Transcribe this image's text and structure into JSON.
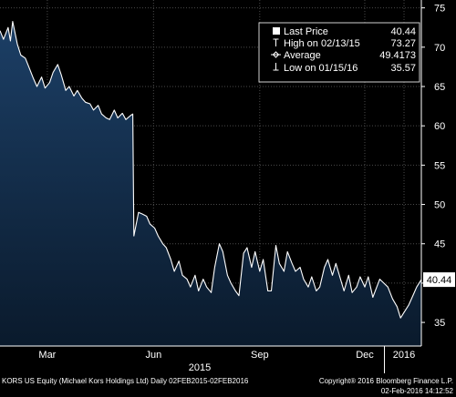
{
  "chart_data": {
    "type": "area",
    "title": "",
    "xlabel": "",
    "ylabel": "",
    "x_start": "2015-02-02",
    "x_end": "2016-02-02",
    "ylim": [
      32,
      76
    ],
    "y_ticks": [
      35,
      40,
      45,
      50,
      55,
      60,
      65,
      70,
      75
    ],
    "grid": true,
    "x_tick_labels": [
      {
        "label": "Mar",
        "date": "2015-03-15"
      },
      {
        "label": "Jun",
        "date": "2015-06-15"
      },
      {
        "label": "Sep",
        "date": "2015-09-15"
      },
      {
        "label": "Dec",
        "date": "2015-12-15"
      },
      {
        "label": "2016",
        "date": "2016-01-18"
      }
    ],
    "x_year_labels": [
      {
        "label": "2015",
        "date": "2015-07-25"
      }
    ],
    "year_divider_date": "2016-01-01",
    "last_value_label": "40.44",
    "series": [
      {
        "name": "Last Price",
        "color": "#ffffff",
        "fill_top": "#1c3f66",
        "fill_bottom": "#0a1a2c",
        "x": [
          "2015-02-02",
          "2015-02-05",
          "2015-02-09",
          "2015-02-11",
          "2015-02-13",
          "2015-02-17",
          "2015-02-20",
          "2015-02-24",
          "2015-02-27",
          "2015-03-03",
          "2015-03-06",
          "2015-03-10",
          "2015-03-13",
          "2015-03-17",
          "2015-03-20",
          "2015-03-24",
          "2015-03-27",
          "2015-03-31",
          "2015-04-03",
          "2015-04-07",
          "2015-04-10",
          "2015-04-14",
          "2015-04-17",
          "2015-04-21",
          "2015-04-24",
          "2015-04-28",
          "2015-05-01",
          "2015-05-05",
          "2015-05-08",
          "2015-05-12",
          "2015-05-15",
          "2015-05-19",
          "2015-05-22",
          "2015-05-26",
          "2015-05-28",
          "2015-05-29",
          "2015-06-02",
          "2015-06-05",
          "2015-06-09",
          "2015-06-12",
          "2015-06-16",
          "2015-06-19",
          "2015-06-23",
          "2015-06-26",
          "2015-06-30",
          "2015-07-03",
          "2015-07-07",
          "2015-07-10",
          "2015-07-14",
          "2015-07-17",
          "2015-07-21",
          "2015-07-24",
          "2015-07-28",
          "2015-07-31",
          "2015-08-04",
          "2015-08-07",
          "2015-08-11",
          "2015-08-14",
          "2015-08-18",
          "2015-08-21",
          "2015-08-25",
          "2015-08-28",
          "2015-09-01",
          "2015-09-04",
          "2015-09-08",
          "2015-09-11",
          "2015-09-15",
          "2015-09-18",
          "2015-09-22",
          "2015-09-25",
          "2015-09-29",
          "2015-10-02",
          "2015-10-06",
          "2015-10-09",
          "2015-10-13",
          "2015-10-16",
          "2015-10-20",
          "2015-10-23",
          "2015-10-27",
          "2015-10-30",
          "2015-11-03",
          "2015-11-06",
          "2015-11-10",
          "2015-11-13",
          "2015-11-17",
          "2015-11-20",
          "2015-11-24",
          "2015-11-27",
          "2015-12-01",
          "2015-12-04",
          "2015-12-08",
          "2015-12-11",
          "2015-12-15",
          "2015-12-18",
          "2015-12-22",
          "2015-12-28",
          "2016-01-04",
          "2016-01-08",
          "2016-01-12",
          "2016-01-15",
          "2016-01-19",
          "2016-01-22",
          "2016-01-26",
          "2016-01-29",
          "2016-02-02"
        ],
        "y": [
          72.1,
          71.0,
          72.5,
          70.8,
          73.27,
          70.4,
          69.0,
          68.6,
          67.5,
          66.0,
          65.0,
          66.2,
          64.8,
          65.5,
          66.8,
          67.8,
          66.5,
          64.5,
          65.0,
          63.8,
          64.5,
          63.5,
          63.0,
          62.8,
          62.0,
          62.6,
          61.5,
          61.0,
          60.8,
          62.0,
          61.0,
          61.6,
          60.8,
          61.3,
          61.5,
          46.0,
          49.0,
          48.8,
          48.5,
          47.5,
          47.0,
          46.0,
          45.0,
          44.5,
          43.0,
          41.5,
          42.8,
          41.0,
          40.5,
          39.5,
          41.0,
          39.0,
          40.5,
          39.5,
          38.8,
          42.0,
          45.0,
          44.0,
          41.0,
          40.0,
          39.0,
          38.4,
          43.8,
          44.5,
          42.0,
          44.0,
          41.5,
          43.0,
          39.0,
          39.0,
          44.8,
          42.5,
          41.5,
          44.0,
          42.5,
          41.5,
          42.0,
          40.5,
          39.5,
          40.8,
          39.0,
          39.5,
          42.0,
          43.0,
          41.0,
          42.5,
          40.5,
          39.0,
          41.0,
          38.8,
          39.5,
          40.8,
          39.5,
          40.8,
          38.2,
          40.5,
          39.5,
          38.0,
          37.0,
          35.57,
          36.5,
          37.2,
          38.5,
          39.5,
          40.44
        ]
      }
    ],
    "legend": {
      "placement": "top-right",
      "entries": [
        {
          "icon": "square-icon",
          "label": "Last Price",
          "value": "40.44"
        },
        {
          "icon": "high-marker-icon",
          "label": "High on 02/13/15",
          "value": "73.27"
        },
        {
          "icon": "average-marker-icon",
          "label": "Average",
          "value": "49.4173"
        },
        {
          "icon": "low-marker-icon",
          "label": "Low on 01/15/16",
          "value": "35.57"
        }
      ]
    }
  },
  "footer": {
    "ticker": "KORS US Equity (Michael Kors Holdings Ltd)  Daily 02FEB2015-02FEB2016",
    "copyright": "Copyright® 2016 Bloomberg Finance L.P.",
    "timestamp": "02-Feb-2016 14:12:52"
  }
}
